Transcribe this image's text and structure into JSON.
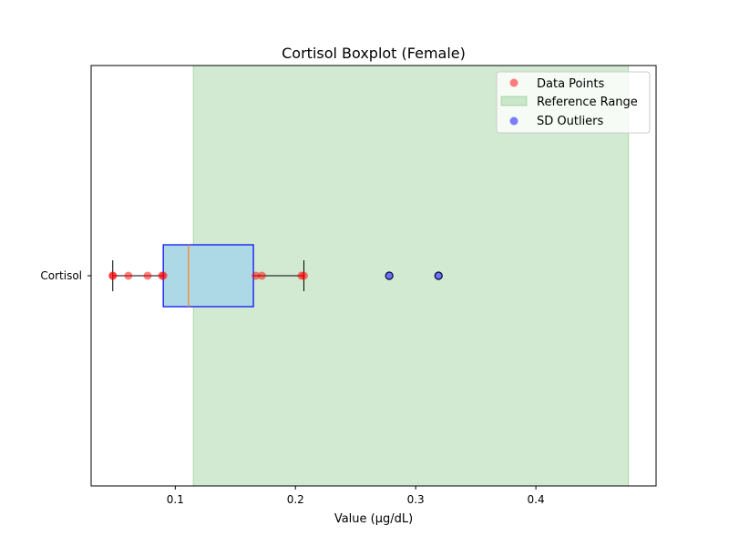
{
  "chart_data": {
    "type": "boxplot",
    "orientation": "horizontal",
    "title": "Cortisol Boxplot (Female)",
    "xlabel": "Value (µg/dL)",
    "ylabel": "",
    "categories": [
      "Cortisol"
    ],
    "xlim": [
      0.03,
      0.5
    ],
    "x_ticks": [
      0.1,
      0.2,
      0.3,
      0.4
    ],
    "x_tick_labels": [
      "0.1",
      "0.2",
      "0.3",
      "0.4"
    ],
    "grid": false,
    "legend_position": "top-right",
    "reference_range": {
      "name": "Reference Range",
      "min": 0.115,
      "max": 0.477,
      "color": "#2ca02c",
      "opacity": 0.22
    },
    "box": {
      "whisker_low": 0.048,
      "q1": 0.09,
      "median": 0.111,
      "q3": 0.165,
      "whisker_high": 0.207,
      "fill_color": "#add8e6",
      "edge_color": "#0000ff",
      "median_color": "#ff7f0e"
    },
    "data_points": {
      "name": "Data Points",
      "color": "#ff0000",
      "opacity": 0.5,
      "values": [
        0.048,
        0.048,
        0.061,
        0.077,
        0.089,
        0.09,
        0.167,
        0.172,
        0.205,
        0.207
      ]
    },
    "sd_outliers": {
      "name": "SD Outliers",
      "color": "#0000ff",
      "opacity": 0.5,
      "values": [
        0.278,
        0.319
      ]
    },
    "legend": [
      {
        "label": "Data Points",
        "marker": "circle",
        "color": "#ff0000"
      },
      {
        "label": "Reference Range",
        "marker": "rect",
        "color": "#2ca02c"
      },
      {
        "label": "SD Outliers",
        "marker": "circle",
        "color": "#0000ff"
      }
    ]
  }
}
